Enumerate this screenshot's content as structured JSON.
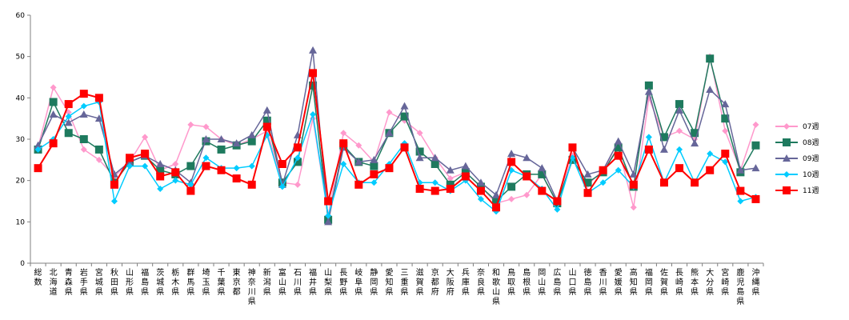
{
  "chart_data": {
    "type": "line",
    "title": "",
    "xlabel": "",
    "ylabel": "",
    "ylim": [
      0,
      60
    ],
    "yticks": [
      0,
      10,
      20,
      30,
      40,
      50,
      60
    ],
    "grid": false,
    "legend_position": "right",
    "categories": [
      "総数",
      "北海道",
      "青森県",
      "岩手県",
      "宮城県",
      "秋田県",
      "山形県",
      "福島県",
      "茨城県",
      "栃木県",
      "群馬県",
      "埼玉県",
      "千葉県",
      "東京都",
      "神奈川県",
      "新潟県",
      "富山県",
      "石川県",
      "福井県",
      "山梨県",
      "長野県",
      "岐阜県",
      "静岡県",
      "愛知県",
      "三重県",
      "滋賀県",
      "京都府",
      "大阪府",
      "兵庫県",
      "奈良県",
      "和歌山県",
      "鳥取県",
      "島根県",
      "岡山県",
      "広島県",
      "山口県",
      "徳島県",
      "香川県",
      "愛媛県",
      "高知県",
      "福岡県",
      "佐賀県",
      "長崎県",
      "熊本県",
      "大分県",
      "宮崎県",
      "鹿児島県",
      "沖縄県"
    ],
    "series": [
      {
        "name": "07週",
        "color": "#ff99cc",
        "marker": "diamond",
        "values": [
          28,
          42.5,
          36.5,
          27.5,
          25,
          21,
          24.5,
          30.5,
          22.5,
          24,
          33.5,
          33,
          30,
          28.5,
          30,
          32,
          19.5,
          19,
          35,
          11.5,
          31.5,
          28.5,
          24.5,
          36.5,
          34.5,
          31.5,
          25.5,
          20.5,
          22,
          18.5,
          14.5,
          15.5,
          16.5,
          21.5,
          14.5,
          26,
          19,
          22.5,
          28,
          13.5,
          40,
          30.5,
          32,
          30,
          50,
          32,
          22.5,
          33.5
        ]
      },
      {
        "name": "08週",
        "color": "#1e7a5e",
        "marker": "square",
        "values": [
          27.5,
          39,
          31.5,
          30,
          27.5,
          19.5,
          24.5,
          26,
          22.5,
          21.5,
          23.5,
          29.5,
          27.5,
          28.5,
          29.5,
          34.5,
          19.5,
          24.5,
          43,
          10.5,
          28.5,
          24.5,
          23.5,
          31.5,
          35.5,
          27,
          24,
          19,
          22,
          18.5,
          15,
          18.5,
          21.5,
          21.5,
          14.5,
          25,
          19.5,
          22,
          28,
          18.5,
          43,
          30.5,
          38.5,
          31.5,
          49.5,
          35,
          22,
          28.5
        ]
      },
      {
        "name": "09週",
        "color": "#666699",
        "marker": "triangle",
        "values": [
          28.5,
          36,
          34,
          36,
          35,
          21.5,
          24.5,
          26,
          24,
          22.5,
          19.5,
          30,
          30,
          29,
          31,
          37,
          19,
          31,
          51.5,
          10,
          28,
          24.5,
          25,
          31.5,
          38,
          25.5,
          25.5,
          22.5,
          23.5,
          19.5,
          16.5,
          26.5,
          25.5,
          23,
          15,
          28,
          21.5,
          22.5,
          29.5,
          21.5,
          41.5,
          27.5,
          37,
          29,
          42,
          38.5,
          22.5,
          23
        ]
      },
      {
        "name": "10週",
        "color": "#00ccff",
        "marker": "diamond",
        "values": [
          27.5,
          30,
          35.5,
          38,
          39,
          15,
          23.5,
          23.5,
          18,
          20,
          19,
          25.5,
          23,
          23,
          23.5,
          31,
          18.5,
          25.5,
          36,
          11.5,
          24,
          19.5,
          19.5,
          24,
          29,
          19.5,
          19.5,
          17.5,
          20,
          15.5,
          12.5,
          22.5,
          21,
          18,
          13,
          25.5,
          17,
          19.5,
          22.5,
          18.5,
          30.5,
          19.5,
          27.5,
          19.5,
          26.5,
          24.5,
          15,
          16
        ]
      },
      {
        "name": "11週",
        "color": "#ff0000",
        "marker": "square",
        "values": [
          23,
          29,
          38.5,
          41,
          40,
          19,
          25.5,
          26.5,
          21,
          22,
          17.5,
          23.5,
          22.5,
          20.5,
          19,
          33,
          24,
          28,
          46,
          15,
          29,
          19,
          21.5,
          23,
          28,
          18,
          17.5,
          18,
          21,
          17.5,
          13.5,
          24.5,
          21,
          17.5,
          15,
          28,
          17,
          22.5,
          26,
          19,
          27.5,
          19.5,
          23,
          19.5,
          22.5,
          26.5,
          17.5,
          15.5
        ]
      }
    ]
  }
}
